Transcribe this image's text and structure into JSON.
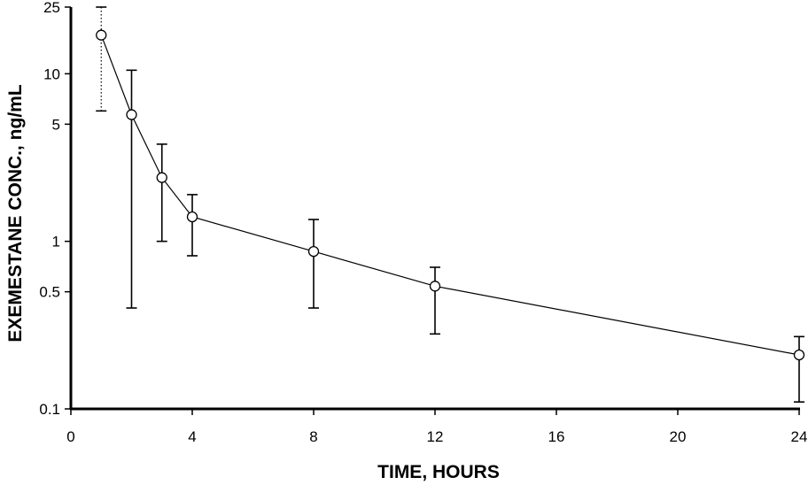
{
  "chart_data": {
    "type": "line",
    "title": "",
    "xlabel": "TIME, HOURS",
    "ylabel": "EXEMESTANE CONC., ng/mL",
    "x_scale": "linear",
    "y_scale": "log",
    "xlim": [
      0,
      24
    ],
    "ylim": [
      0.1,
      25
    ],
    "x_ticks": [
      0,
      4,
      8,
      12,
      16,
      20,
      24
    ],
    "x_tick_labels": [
      "0",
      "4",
      "8",
      "12",
      "16",
      "20",
      "24"
    ],
    "y_ticks": [
      0.1,
      0.5,
      1,
      5,
      10,
      25
    ],
    "y_tick_labels": [
      "0.1",
      "0.5",
      "1",
      "5",
      "10",
      "25"
    ],
    "grid": false,
    "legend": "none",
    "marker": "open-circle",
    "series": [
      {
        "x": [
          1,
          2,
          3,
          4,
          8,
          12,
          24
        ],
        "y": [
          17,
          5.7,
          2.4,
          1.4,
          0.87,
          0.54,
          0.21
        ],
        "y_err_upper": [
          25,
          10.5,
          3.8,
          1.9,
          1.35,
          0.7,
          0.27
        ],
        "y_err_lower": [
          6,
          0.4,
          1.0,
          0.82,
          0.4,
          0.28,
          0.11
        ]
      }
    ]
  }
}
